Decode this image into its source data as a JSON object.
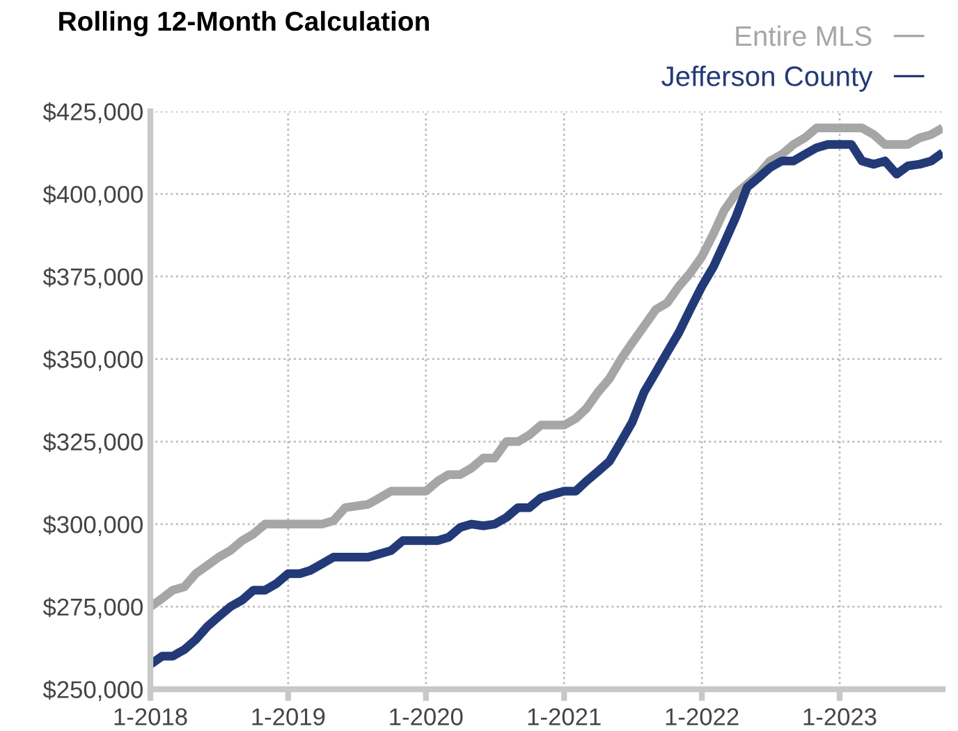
{
  "chart_data": {
    "type": "line",
    "title": "Rolling 12-Month Calculation",
    "x": [
      "2018-01",
      "2018-02",
      "2018-03",
      "2018-04",
      "2018-05",
      "2018-06",
      "2018-07",
      "2018-08",
      "2018-09",
      "2018-10",
      "2018-11",
      "2018-12",
      "2019-01",
      "2019-02",
      "2019-03",
      "2019-04",
      "2019-05",
      "2019-06",
      "2019-07",
      "2019-08",
      "2019-09",
      "2019-10",
      "2019-11",
      "2019-12",
      "2020-01",
      "2020-02",
      "2020-03",
      "2020-04",
      "2020-05",
      "2020-06",
      "2020-07",
      "2020-08",
      "2020-09",
      "2020-10",
      "2020-11",
      "2020-12",
      "2021-01",
      "2021-02",
      "2021-03",
      "2021-04",
      "2021-05",
      "2021-06",
      "2021-07",
      "2021-08",
      "2021-09",
      "2021-10",
      "2021-11",
      "2021-12",
      "2022-01",
      "2022-02",
      "2022-03",
      "2022-04",
      "2022-05",
      "2022-06",
      "2022-07",
      "2022-08",
      "2022-09",
      "2022-10",
      "2022-11",
      "2022-12",
      "2023-01",
      "2023-02",
      "2023-03",
      "2023-04",
      "2023-05",
      "2023-06",
      "2023-07",
      "2023-08",
      "2023-09",
      "2023-10"
    ],
    "series": [
      {
        "name": "Entire MLS",
        "color": "#a6a6a6",
        "values": [
          275000,
          277500,
          280000,
          281000,
          285000,
          287500,
          290000,
          292000,
          295000,
          297000,
          300000,
          300000,
          300000,
          300000,
          300000,
          300000,
          301000,
          305000,
          305500,
          306000,
          308000,
          310000,
          310000,
          310000,
          310000,
          313000,
          315000,
          315000,
          317000,
          320000,
          320000,
          325000,
          325000,
          327000,
          330000,
          330000,
          330000,
          332000,
          335000,
          340000,
          344000,
          350000,
          355000,
          360000,
          365000,
          367000,
          372000,
          376000,
          381000,
          388000,
          395000,
          400000,
          403000,
          406000,
          410000,
          412000,
          415000,
          417000,
          420000,
          420000,
          420000,
          420000,
          420000,
          418000,
          415000,
          415000,
          415000,
          417000,
          418000,
          420000
        ]
      },
      {
        "name": "Jefferson County",
        "color": "#233a78",
        "values": [
          257500,
          260000,
          260000,
          262000,
          265000,
          269000,
          272000,
          275000,
          277000,
          280000,
          280000,
          282000,
          285000,
          285000,
          286000,
          288000,
          290000,
          290000,
          290000,
          290000,
          291000,
          292000,
          295000,
          295000,
          295000,
          295000,
          296000,
          299000,
          300000,
          299500,
          300000,
          302000,
          305000,
          305000,
          308000,
          309000,
          310000,
          310000,
          313000,
          316000,
          319000,
          325000,
          331000,
          340000,
          346000,
          352000,
          358000,
          365000,
          372000,
          378000,
          385000,
          393000,
          402000,
          405000,
          408000,
          410000,
          410000,
          412000,
          414000,
          415000,
          415000,
          415000,
          410000,
          409000,
          410000,
          406000,
          408500,
          409000,
          410000,
          412500
        ]
      }
    ],
    "xlim": [
      "2018-01",
      "2023-10"
    ],
    "xticks": [
      {
        "value": "2018-01",
        "label": "1-2018"
      },
      {
        "value": "2019-01",
        "label": "1-2019"
      },
      {
        "value": "2020-01",
        "label": "1-2020"
      },
      {
        "value": "2021-01",
        "label": "1-2021"
      },
      {
        "value": "2022-01",
        "label": "1-2022"
      },
      {
        "value": "2023-01",
        "label": "1-2023"
      }
    ],
    "ylim": [
      250000,
      425000
    ],
    "yticks": [
      {
        "value": 250000,
        "label": "$250,000"
      },
      {
        "value": 275000,
        "label": "$275,000"
      },
      {
        "value": 300000,
        "label": "$300,000"
      },
      {
        "value": 325000,
        "label": "$325,000"
      },
      {
        "value": 350000,
        "label": "$350,000"
      },
      {
        "value": 375000,
        "label": "$375,000"
      },
      {
        "value": 400000,
        "label": "$400,000"
      },
      {
        "value": 425000,
        "label": "$425,000"
      }
    ],
    "grid": true,
    "legend": "top right",
    "line_style": "solid",
    "marker": "none"
  }
}
